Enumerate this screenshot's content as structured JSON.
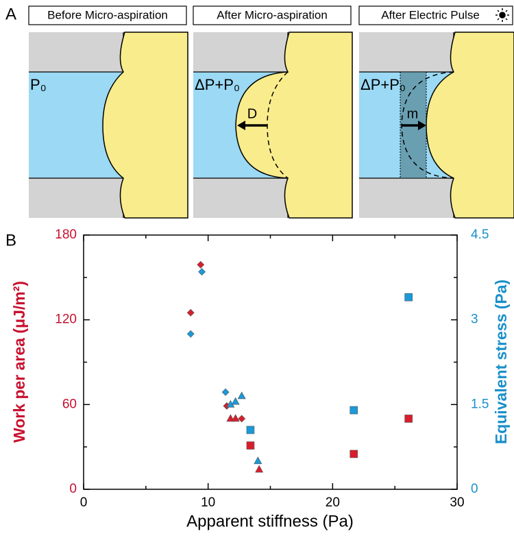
{
  "panel_labels": [
    "A",
    "B"
  ],
  "panel_a": {
    "panels": [
      {
        "title": "Before Micro-aspiration",
        "pressure_label": "P₀"
      },
      {
        "title": "After Micro-aspiration",
        "pressure_label": "ΔP+P₀",
        "arrow_label": "D"
      },
      {
        "title": "After Electric Pulse",
        "pressure_label": "ΔP+P₀",
        "arrow_label": "m"
      }
    ]
  },
  "chart_data": {
    "type": "scatter",
    "x_label": "Apparent stiffness (Pa)",
    "y_label": "Work per area (μJ/m²)",
    "y2_label": "Equivalent stress (Pa)",
    "xlim": [
      0,
      30
    ],
    "xticks": [
      0,
      10,
      20,
      30
    ],
    "x_minor_ticks": [
      5,
      15,
      25
    ],
    "ylim": [
      0,
      180
    ],
    "yticks": [
      0,
      60,
      120,
      180
    ],
    "y_minor_ticks": [
      30,
      90,
      150
    ],
    "y2lim": [
      0,
      4.5
    ],
    "y2ticks": [
      0,
      1.5,
      3,
      4.5
    ],
    "y2_minor_ticks": [
      0.75,
      2.25,
      3.75
    ],
    "y_color": "#c8102e",
    "y2_color": "#1a8fc9",
    "series": [
      {
        "color": "#d81e2c",
        "x": [
          8.6,
          9.4,
          11.5,
          11.8,
          12.2,
          12.7,
          13.4,
          14.1,
          21.7,
          26.1
        ],
        "values": [
          125,
          159,
          59,
          50,
          50,
          50,
          31,
          14,
          25,
          50
        ],
        "markers": [
          "diamond",
          "diamond",
          "diamond",
          "triangle",
          "triangle",
          "diamond",
          "square",
          "triangle",
          "square",
          "square"
        ]
      },
      {
        "color": "#1a9ad8",
        "axis": "y2",
        "x": [
          8.6,
          9.5,
          11.4,
          11.8,
          12.2,
          12.7,
          13.4,
          14.0,
          21.7,
          26.1
        ],
        "values": [
          2.75,
          3.85,
          1.72,
          1.5,
          1.55,
          1.65,
          1.05,
          0.5,
          1.4,
          3.4
        ],
        "markers": [
          "diamond",
          "diamond",
          "diamond",
          "triangle",
          "triangle",
          "triangle",
          "square",
          "triangle",
          "square",
          "square"
        ]
      }
    ]
  }
}
